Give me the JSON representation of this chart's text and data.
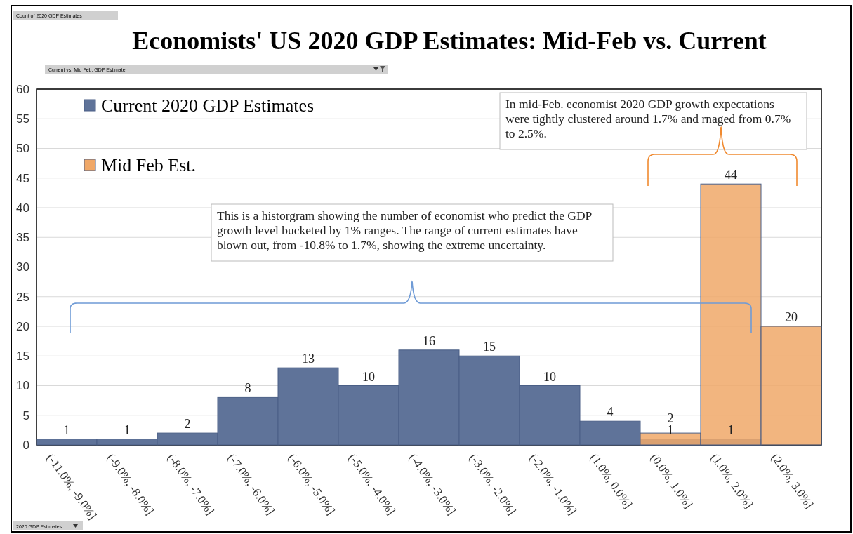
{
  "chart_data": {
    "type": "bar",
    "title": "Economists' US 2020 GDP Estimates: Mid-Feb vs. Current",
    "categories": [
      "(-11.0%, -9.0%]",
      "(-9.0%, -8.0%]",
      "(-8.0%, -7.0%]",
      "(-7.0%, -6.0%]",
      "(-6.0%, -5.0%]",
      "(-5.0%, -4.0%]",
      "(-4.0%, -3.0%]",
      "(-3.0%, -2.0%]",
      "(-2.0%, -1.0%]",
      "(1.0%, 0.0%]",
      "(0.0%, 1.0%]",
      "(1.0%, 2.0%]",
      "(2.0%, 3.0%]"
    ],
    "series": [
      {
        "name": "Current 2020 GDP Estimates",
        "color": "#5f7399",
        "values": [
          1,
          1,
          2,
          8,
          13,
          10,
          16,
          15,
          10,
          4,
          1,
          1,
          null
        ]
      },
      {
        "name": "Mid Feb Est.",
        "color": "#f0a868",
        "values": [
          null,
          null,
          null,
          null,
          null,
          null,
          null,
          null,
          null,
          null,
          2,
          44,
          20
        ]
      }
    ],
    "ylim": [
      0,
      60
    ],
    "yticks": [
      0,
      5,
      10,
      15,
      20,
      25,
      30,
      35,
      40,
      45,
      50,
      55,
      60
    ],
    "grid": "y",
    "legend": "top left",
    "data_labels": true,
    "annotations": [
      "Count of 2020 GDP Estimates",
      "Current vs. Mid Feb. GDP Estimate",
      "2020 GDP Estimates",
      "In mid-Feb. economist 2020 GDP growth expectations were tightly clustered around 1.7% and rnaged from 0.7% to 2.5%.",
      "This is a historgram showing the number of economist who predict the GDP growth level bucketed by 1% ranges. The range of current estimates have blown out, from -10.8% to 1.7%, showing the extreme uncertainty."
    ]
  }
}
